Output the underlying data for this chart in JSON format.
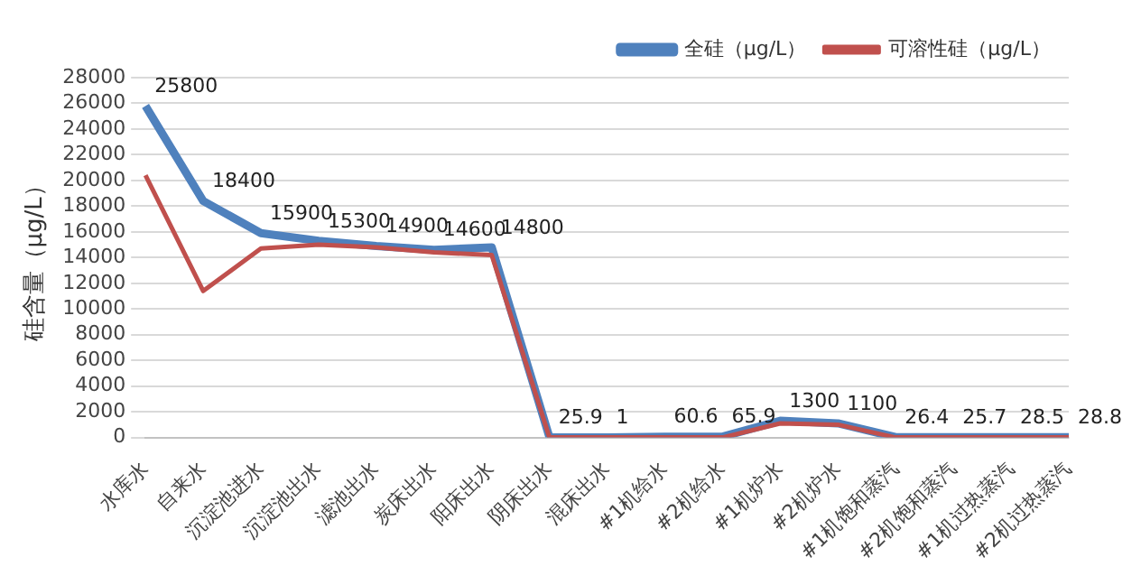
{
  "chart_data": {
    "type": "line",
    "ylabel": "硅含量（μg/L）",
    "categories": [
      "水库水",
      "自来水",
      "沉淀池进水",
      "沉淀池出水",
      "滤池出水",
      "炭床出水",
      "阳床出水",
      "阴床出水",
      "混床出水",
      "#1机给水",
      "#2机给水",
      "#1机炉水",
      "#2机炉水",
      "#1机饱和蒸汽",
      "#2机饱和蒸汽",
      "#1机过热蒸汽",
      "#2机过热蒸汽"
    ],
    "series": [
      {
        "name": "全硅（μg/L）",
        "color": "#4f81bd",
        "values": [
          25800,
          18400,
          15900,
          15300,
          14900,
          14600,
          14800,
          25.9,
          1,
          60.6,
          65.9,
          1300,
          1100,
          26.4,
          25.7,
          28.5,
          28.8
        ],
        "value_labels": [
          "25800",
          "18400",
          "15900",
          "15300",
          "14900",
          "14600",
          "14800",
          "25.9",
          "1",
          "60.6",
          "65.9",
          "1300",
          "1100",
          "26.4",
          "25.7",
          "28.5",
          "28.8"
        ]
      },
      {
        "name": "可溶性硅（μg/L）",
        "color": "#c0504d",
        "values": [
          20400,
          11400,
          14700,
          15000,
          14800,
          14400,
          14200,
          0,
          0,
          0,
          0,
          1100,
          1000,
          0,
          0,
          0,
          0
        ]
      }
    ],
    "ylim": [
      0,
      28000
    ],
    "yticks": [
      0,
      2000,
      4000,
      6000,
      8000,
      10000,
      12000,
      14000,
      16000,
      18000,
      20000,
      22000,
      24000,
      26000,
      28000
    ],
    "grid": "y",
    "legend": "top right",
    "marker": "none",
    "line_style": "solid"
  }
}
